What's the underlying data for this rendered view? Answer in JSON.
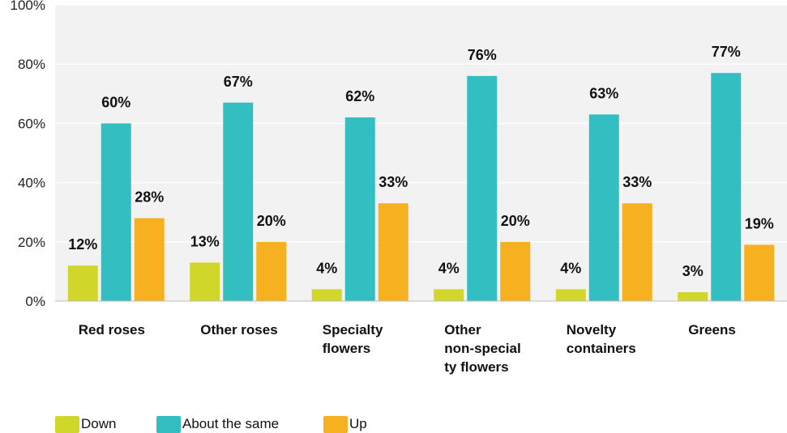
{
  "chart_data": {
    "type": "bar",
    "title": "",
    "xlabel": "",
    "ylabel": "",
    "ylim": [
      0,
      100
    ],
    "y_ticks": [
      "0%",
      "20%",
      "40%",
      "60%",
      "80%",
      "100%"
    ],
    "grid": true,
    "legend_position": "bottom-left",
    "categories": [
      [
        "Red roses"
      ],
      [
        "Other roses"
      ],
      [
        "Specialty",
        "flowers"
      ],
      [
        "Other",
        "non-special",
        "ty flowers"
      ],
      [
        "Novelty",
        "containers"
      ],
      [
        "Greens"
      ]
    ],
    "series": [
      {
        "name": "Down",
        "color": "#d1d62a",
        "values": [
          12,
          13,
          4,
          4,
          4,
          3
        ],
        "labels": [
          "12%",
          "13%",
          "4%",
          "4%",
          "4%",
          "3%"
        ]
      },
      {
        "name": "About the same",
        "color": "#33bfc1",
        "values": [
          60,
          67,
          62,
          76,
          63,
          77
        ],
        "labels": [
          "60%",
          "67%",
          "62%",
          "76%",
          "63%",
          "77%"
        ]
      },
      {
        "name": "Up",
        "color": "#f7b020",
        "values": [
          28,
          20,
          33,
          20,
          33,
          19
        ],
        "labels": [
          "28%",
          "20%",
          "33%",
          "20%",
          "33%",
          "19%"
        ]
      }
    ]
  }
}
